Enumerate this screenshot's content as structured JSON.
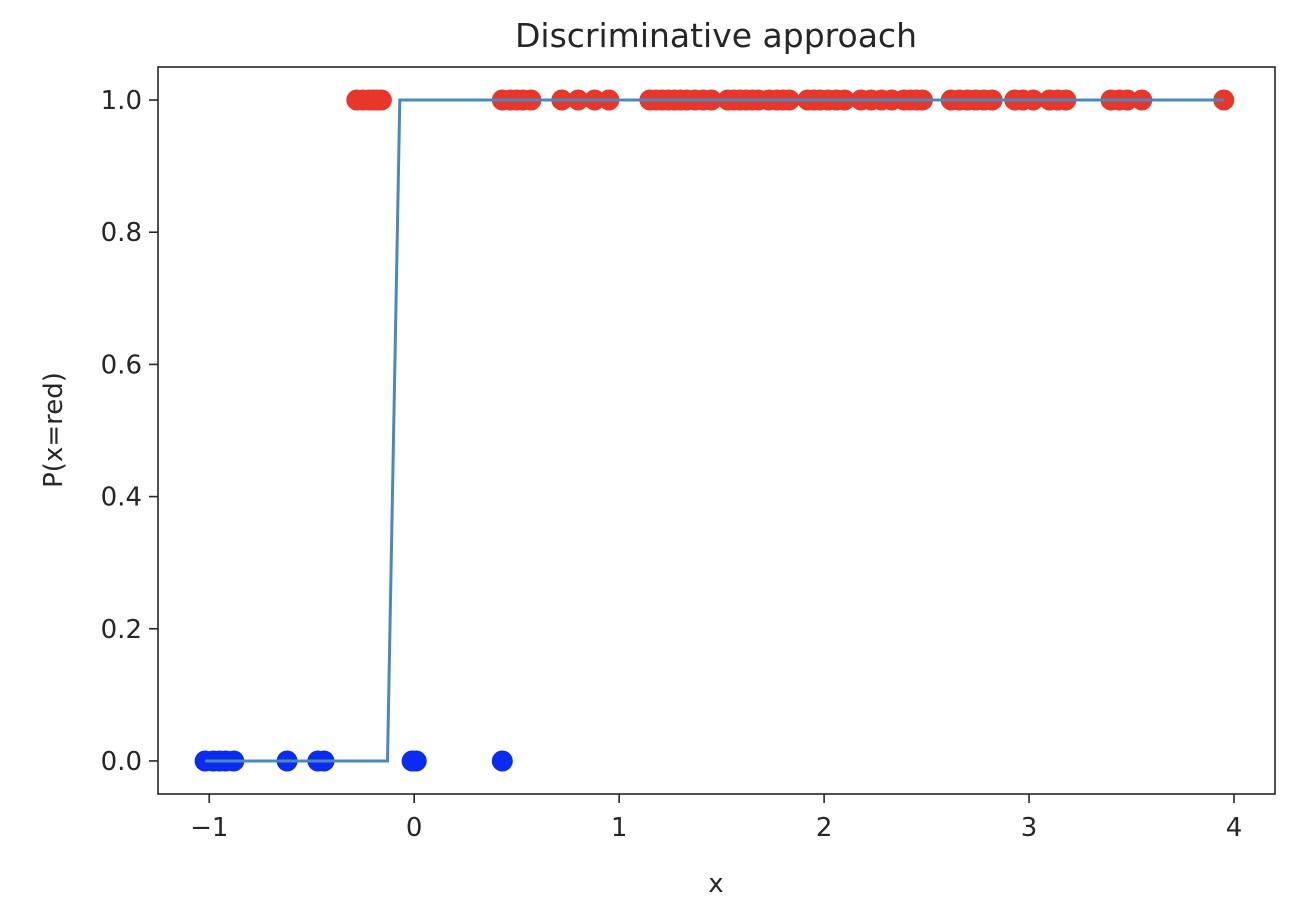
{
  "chart_data": {
    "type": "scatter",
    "title": "Discriminative approach",
    "xlabel": "x",
    "ylabel": "P(x=red)",
    "xlim": [
      -1.25,
      4.2
    ],
    "ylim": [
      -0.05,
      1.05
    ],
    "xticks": [
      -1,
      0,
      1,
      2,
      3,
      4
    ],
    "xtick_labels": [
      "−1",
      "0",
      "1",
      "2",
      "3",
      "4"
    ],
    "yticks": [
      0.0,
      0.2,
      0.4,
      0.6,
      0.8,
      1.0
    ],
    "ytick_labels": [
      "0.0",
      "0.2",
      "0.4",
      "0.6",
      "0.8",
      "1.0"
    ],
    "grid": false,
    "legend": "none",
    "series": [
      {
        "kind": "scatter",
        "color": "#e8362a",
        "x": [
          -0.28,
          -0.25,
          -0.22,
          -0.2,
          -0.18,
          -0.16,
          0.43,
          0.47,
          0.5,
          0.53,
          0.57,
          0.72,
          0.8,
          0.88,
          0.95,
          1.15,
          1.18,
          1.21,
          1.24,
          1.27,
          1.3,
          1.33,
          1.37,
          1.41,
          1.45,
          1.53,
          1.56,
          1.59,
          1.62,
          1.65,
          1.68,
          1.73,
          1.77,
          1.8,
          1.83,
          1.92,
          1.95,
          1.98,
          2.02,
          2.06,
          2.1,
          2.18,
          2.23,
          2.28,
          2.33,
          2.39,
          2.42,
          2.45,
          2.48,
          2.62,
          2.66,
          2.7,
          2.74,
          2.78,
          2.82,
          2.93,
          2.97,
          3.02,
          3.1,
          3.14,
          3.18,
          3.4,
          3.44,
          3.48,
          3.55,
          3.95
        ],
        "y": [
          1,
          1,
          1,
          1,
          1,
          1,
          1,
          1,
          1,
          1,
          1,
          1,
          1,
          1,
          1,
          1,
          1,
          1,
          1,
          1,
          1,
          1,
          1,
          1,
          1,
          1,
          1,
          1,
          1,
          1,
          1,
          1,
          1,
          1,
          1,
          1,
          1,
          1,
          1,
          1,
          1,
          1,
          1,
          1,
          1,
          1,
          1,
          1,
          1,
          1,
          1,
          1,
          1,
          1,
          1,
          1,
          1,
          1,
          1,
          1,
          1,
          1,
          1,
          1,
          1,
          1
        ]
      },
      {
        "kind": "scatter",
        "color": "#0a2cf0",
        "x": [
          -1.02,
          -0.98,
          -0.95,
          -0.92,
          -0.88,
          -0.62,
          -0.47,
          -0.44,
          -0.01,
          0.01,
          0.43
        ],
        "y": [
          0,
          0,
          0,
          0,
          0,
          0,
          0,
          0,
          0,
          0,
          0
        ]
      },
      {
        "kind": "line",
        "color": "#4a88c0",
        "x": [
          -1.02,
          -0.13,
          -0.07,
          3.95
        ],
        "y": [
          0,
          0,
          1,
          1
        ]
      }
    ]
  }
}
